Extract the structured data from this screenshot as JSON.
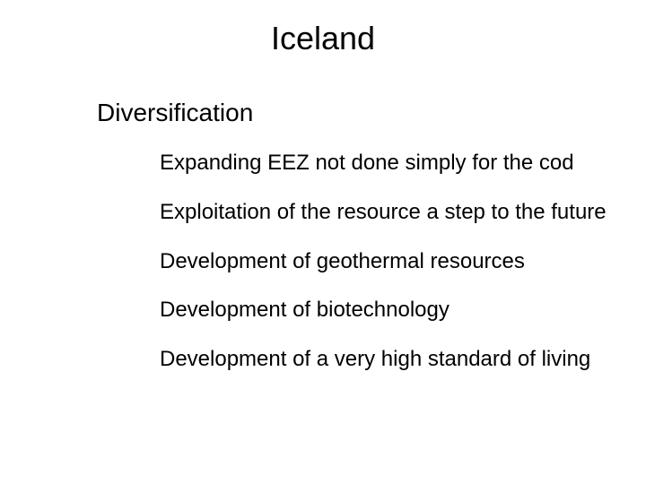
{
  "slide": {
    "title": "Iceland",
    "subtitle": "Diversification",
    "bullets": [
      "Expanding EEZ not done simply for the cod",
      "Exploitation of the resource a step to the future",
      "Development of geothermal resources",
      "Development of biotechnology",
      "Development of a very high standard of living"
    ]
  },
  "style": {
    "background_color": "#ffffff",
    "text_color": "#000000",
    "title_fontsize": 36,
    "subtitle_fontsize": 28,
    "body_fontsize": 24,
    "font_family": "Arial"
  }
}
